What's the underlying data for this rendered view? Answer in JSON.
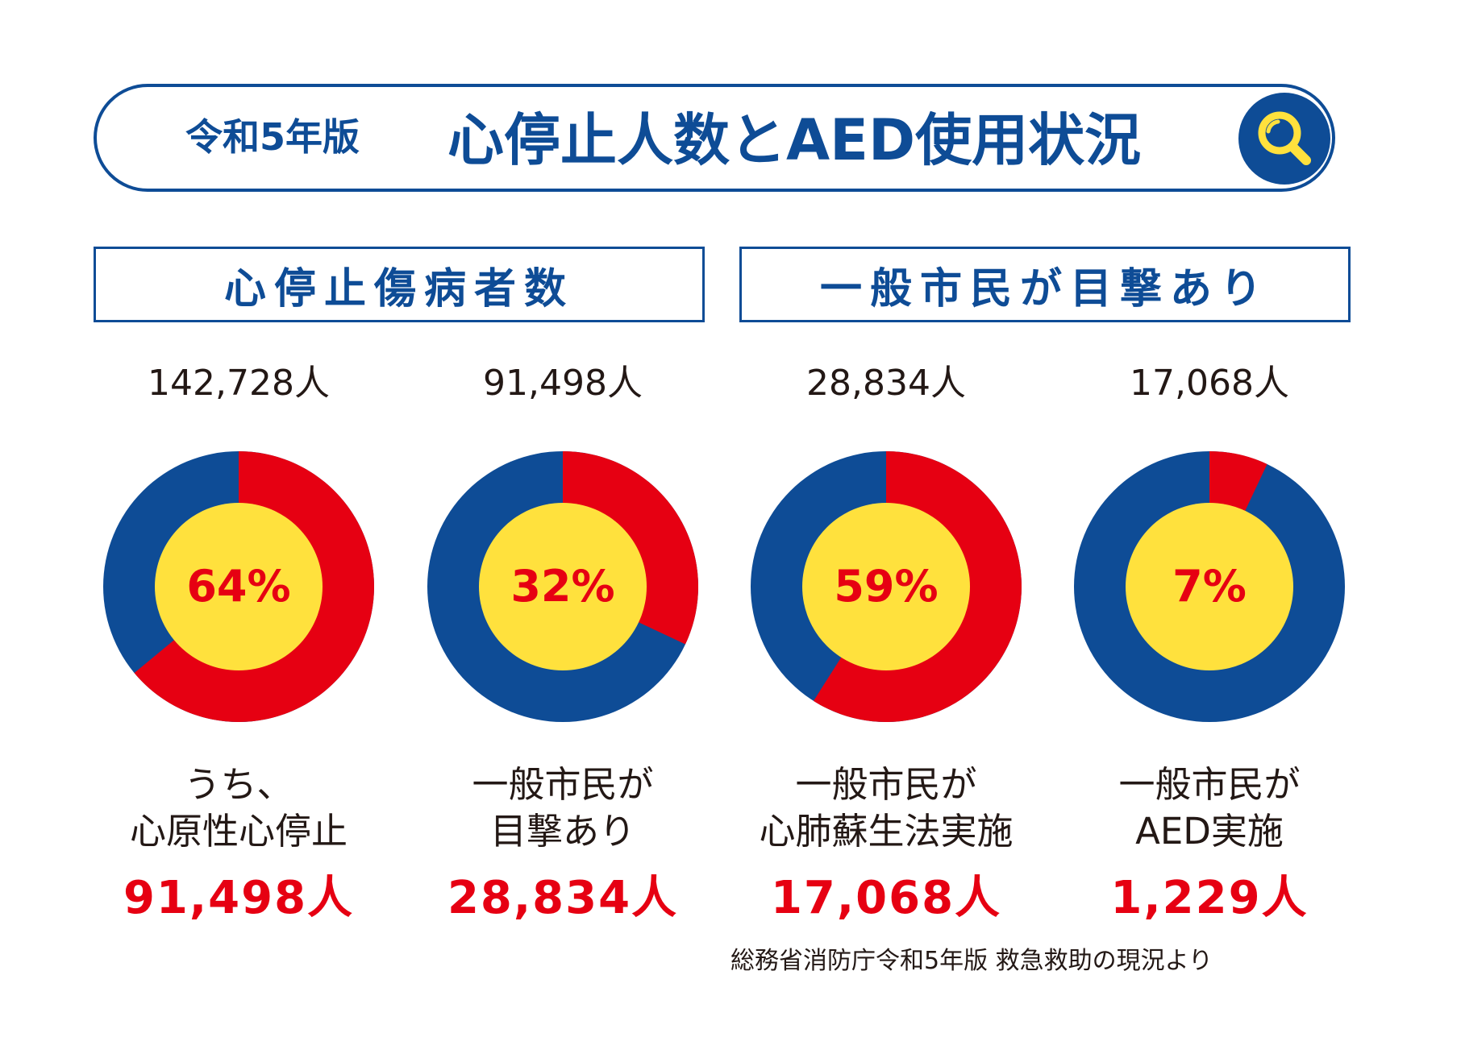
{
  "header": {
    "year_label": "令和5年版",
    "main_title": "心停止人数とAED使用状況",
    "badge_icon": "magnifier-icon"
  },
  "sections": [
    {
      "label": "心停止傷病者数"
    },
    {
      "label": "一般市民が目撃あり"
    }
  ],
  "colors": {
    "primary_blue": "#0e4c96",
    "accent_red": "#e60012",
    "center_yellow": "#ffe13d"
  },
  "chart_data": [
    {
      "type": "pie",
      "total_label": "142,728人",
      "percent": 64,
      "percent_label": "64%",
      "caption": "うち、\n心原性心停止",
      "count_label": "91,498人"
    },
    {
      "type": "pie",
      "total_label": "91,498人",
      "percent": 32,
      "percent_label": "32%",
      "caption": "一般市民が\n目撃あり",
      "count_label": "28,834人"
    },
    {
      "type": "pie",
      "total_label": "28,834人",
      "percent": 59,
      "percent_label": "59%",
      "caption": "一般市民が\n心肺蘇生法実施",
      "count_label": "17,068人"
    },
    {
      "type": "pie",
      "total_label": "17,068人",
      "percent": 7,
      "percent_label": "7%",
      "caption": "一般市民が\nAED実施",
      "count_label": "1,229人"
    }
  ],
  "footer": {
    "source": "総務省消防庁令和5年版 救急救助の現況より"
  }
}
